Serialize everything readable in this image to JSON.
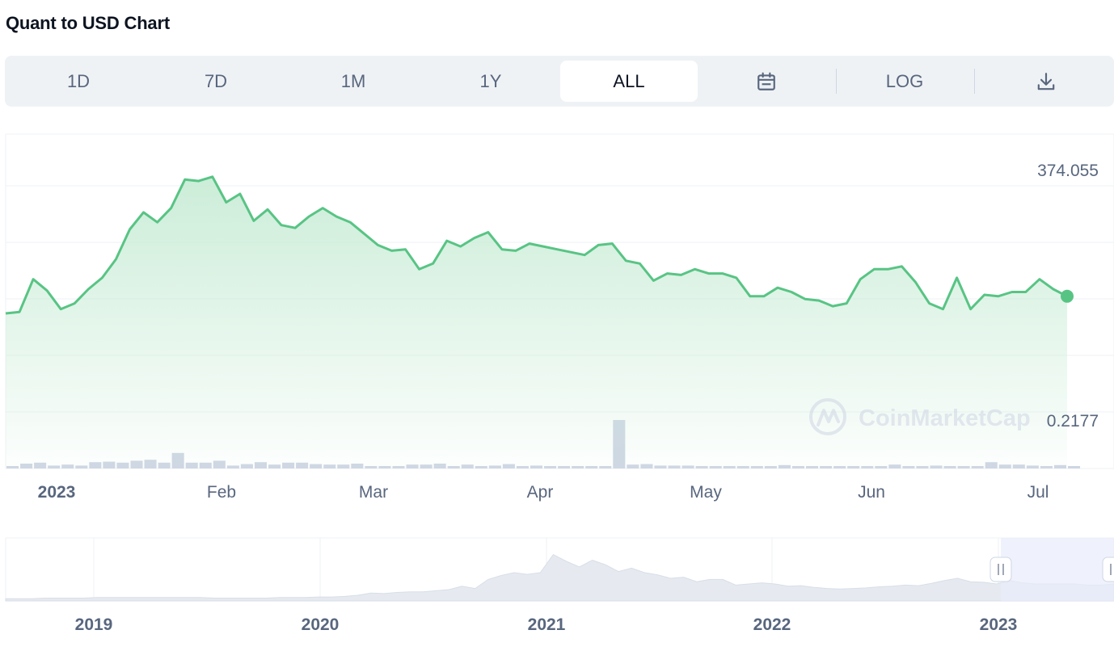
{
  "title": "Quant to USD Chart",
  "toolbar": {
    "ranges": [
      "1D",
      "7D",
      "1M",
      "1Y",
      "ALL"
    ],
    "active_range": "ALL",
    "calendar_icon": "calendar-icon",
    "log_label": "LOG",
    "download_icon": "download-icon"
  },
  "colors": {
    "line": "#58c484",
    "fill_top": "#c9ecd6",
    "grid": "#eff2f5",
    "volume": "#cfd6e4",
    "axis_text": "#58667e",
    "nav_fill": "#e6eaf0",
    "nav_selection": "#e8ecfb"
  },
  "watermark": "CoinMarketCap",
  "chart_data": [
    {
      "type": "line",
      "title": "Quant to USD Chart",
      "y_labels": [
        "374.055",
        "0.2177"
      ],
      "x_tick_labels": [
        "2023",
        "Feb",
        "Mar",
        "Apr",
        "May",
        "Jun",
        "Jul"
      ],
      "grid": true,
      "series": [
        {
          "values": [
            109,
            110,
            133,
            125,
            112,
            116,
            126,
            134,
            147,
            168,
            180,
            173,
            183,
            203,
            202,
            205,
            187,
            193,
            174,
            182,
            171,
            169,
            177,
            183,
            177,
            173,
            165,
            157,
            153,
            154,
            140,
            144,
            160,
            156,
            162,
            166,
            154,
            153,
            158,
            156,
            154,
            152,
            150,
            157,
            158,
            146,
            144,
            132,
            137,
            136,
            140,
            137,
            137,
            134,
            121,
            121,
            127,
            124,
            119,
            118,
            114,
            116,
            133,
            140,
            140,
            142,
            131,
            116,
            112,
            134,
            112,
            122,
            121,
            124,
            124,
            133,
            126,
            121
          ],
          "volume": [
            0.03,
            0.1,
            0.12,
            0.06,
            0.08,
            0.06,
            0.13,
            0.14,
            0.12,
            0.16,
            0.18,
            0.12,
            0.32,
            0.12,
            0.12,
            0.16,
            0.06,
            0.09,
            0.13,
            0.08,
            0.12,
            0.12,
            0.09,
            0.08,
            0.08,
            0.1,
            0.05,
            0.05,
            0.05,
            0.08,
            0.08,
            0.1,
            0.05,
            0.08,
            0.05,
            0.06,
            0.09,
            0.05,
            0.06,
            0.05,
            0.05,
            0.05,
            0.05,
            0.05,
            1.0,
            0.08,
            0.09,
            0.06,
            0.06,
            0.06,
            0.05,
            0.05,
            0.04,
            0.04,
            0.04,
            0.04,
            0.07,
            0.05,
            0.04,
            0.05,
            0.03,
            0.03,
            0.04,
            0.04,
            0.08,
            0.05,
            0.04,
            0.06,
            0.05,
            0.04,
            0.05,
            0.13,
            0.08,
            0.08,
            0.06,
            0.05,
            0.07,
            0.05
          ]
        }
      ]
    },
    {
      "type": "area",
      "x_tick_labels": [
        "2019",
        "2020",
        "2021",
        "2022",
        "2023"
      ],
      "selection": "2023",
      "values": [
        0.04,
        0.04,
        0.04,
        0.05,
        0.05,
        0.05,
        0.05,
        0.06,
        0.06,
        0.06,
        0.06,
        0.06,
        0.06,
        0.06,
        0.06,
        0.06,
        0.05,
        0.05,
        0.05,
        0.05,
        0.05,
        0.06,
        0.06,
        0.06,
        0.07,
        0.07,
        0.08,
        0.1,
        0.14,
        0.13,
        0.15,
        0.16,
        0.16,
        0.18,
        0.2,
        0.26,
        0.22,
        0.38,
        0.45,
        0.5,
        0.47,
        0.5,
        0.82,
        0.7,
        0.6,
        0.72,
        0.64,
        0.52,
        0.58,
        0.5,
        0.46,
        0.4,
        0.42,
        0.34,
        0.38,
        0.38,
        0.28,
        0.3,
        0.32,
        0.3,
        0.26,
        0.27,
        0.24,
        0.22,
        0.21,
        0.22,
        0.23,
        0.25,
        0.26,
        0.28,
        0.27,
        0.31,
        0.36,
        0.4,
        0.34,
        0.33,
        0.3,
        0.36,
        0.32,
        0.3,
        0.3,
        0.3,
        0.3,
        0.28,
        0.28,
        0.3
      ]
    }
  ]
}
